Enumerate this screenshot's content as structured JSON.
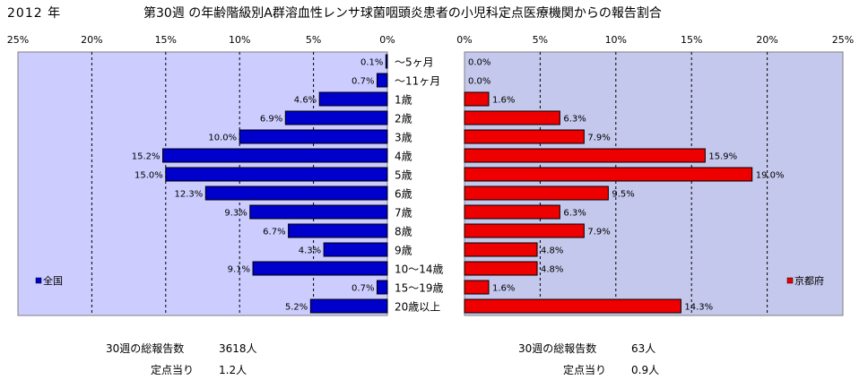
{
  "header": {
    "year": "2012 年",
    "title": "第30週 の年齢階級別A群溶血性レンサ球菌咽頭炎患者の小児科定点医療機関からの報告割合"
  },
  "colors": {
    "national": "#0000cc",
    "kyoto": "#ee0000",
    "plot_bg_left": "#ccccff",
    "plot_bg_right": "#c4c8ec"
  },
  "chart_data": [
    {
      "type": "bar",
      "orientation": "horizontal",
      "direction": "reversed",
      "series": [
        {
          "name": "全国",
          "values": [
            0.1,
            0.7,
            4.6,
            6.9,
            10.0,
            15.2,
            15.0,
            12.3,
            9.3,
            6.7,
            4.3,
            9.1,
            0.7,
            5.2
          ]
        }
      ],
      "labels": [
        "0.1%",
        "0.7%",
        "4.6%",
        "6.9%",
        "10.0%",
        "15.2%",
        "15.0%",
        "12.3%",
        "9.3%",
        "6.7%",
        "4.3%",
        "9.1%",
        "0.7%",
        "5.2%"
      ],
      "xlim": [
        0,
        25
      ],
      "ticks": [
        "25%",
        "20%",
        "15%",
        "10%",
        "5%",
        "0%"
      ],
      "grid": true,
      "legend_position": "left"
    },
    {
      "type": "bar",
      "orientation": "horizontal",
      "series": [
        {
          "name": "京都府",
          "values": [
            0.0,
            0.0,
            1.6,
            6.3,
            7.9,
            15.9,
            19.0,
            9.5,
            6.3,
            7.9,
            4.8,
            4.8,
            1.6,
            14.3
          ]
        }
      ],
      "labels": [
        "0.0%",
        "0.0%",
        "1.6%",
        "6.3%",
        "7.9%",
        "15.9%",
        "19.0%",
        "9.5%",
        "6.3%",
        "7.9%",
        "4.8%",
        "4.8%",
        "1.6%",
        "14.3%"
      ],
      "xlim": [
        0,
        25
      ],
      "ticks": [
        "0%",
        "5%",
        "10%",
        "15%",
        "20%",
        "25%"
      ],
      "grid": true,
      "legend_position": "right"
    }
  ],
  "categories": [
    "〜5ヶ月",
    "〜11ヶ月",
    "1歳",
    "2歳",
    "3歳",
    "4歳",
    "5歳",
    "6歳",
    "7歳",
    "8歳",
    "9歳",
    "10〜14歳",
    "15〜19歳",
    "20歳以上"
  ],
  "footer": {
    "left": {
      "total_label": "30週の総報告数",
      "total_value": "3618人",
      "per_label": "定点当り",
      "per_value": "1.2人"
    },
    "right": {
      "total_label": "30週の総報告数",
      "total_value": "63人",
      "per_label": "定点当り",
      "per_value": "0.9人"
    }
  }
}
